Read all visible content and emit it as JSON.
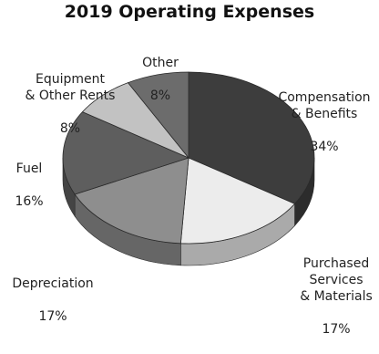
{
  "chart_data": {
    "type": "pie",
    "title": "2019 Operating Expenses",
    "slices": [
      {
        "label": "Compensation\n& Benefits",
        "value": 34,
        "pct": "34%",
        "color": "#3d3d3d"
      },
      {
        "label": "Purchased\nServices\n& Materials",
        "value": 17,
        "pct": "17%",
        "color": "#ececec"
      },
      {
        "label": "Depreciation",
        "value": 17,
        "pct": "17%",
        "color": "#8e8e8e"
      },
      {
        "label": "Fuel",
        "value": 16,
        "pct": "16%",
        "color": "#5e5e5e"
      },
      {
        "label": "Equipment\n& Other Rents",
        "value": 8,
        "pct": "8%",
        "color": "#c2c2c2"
      },
      {
        "label": "Other",
        "value": 8,
        "pct": "8%",
        "color": "#6c6c6c"
      }
    ],
    "start_angle_deg": 0,
    "direction": "clockwise",
    "style": "3d"
  }
}
